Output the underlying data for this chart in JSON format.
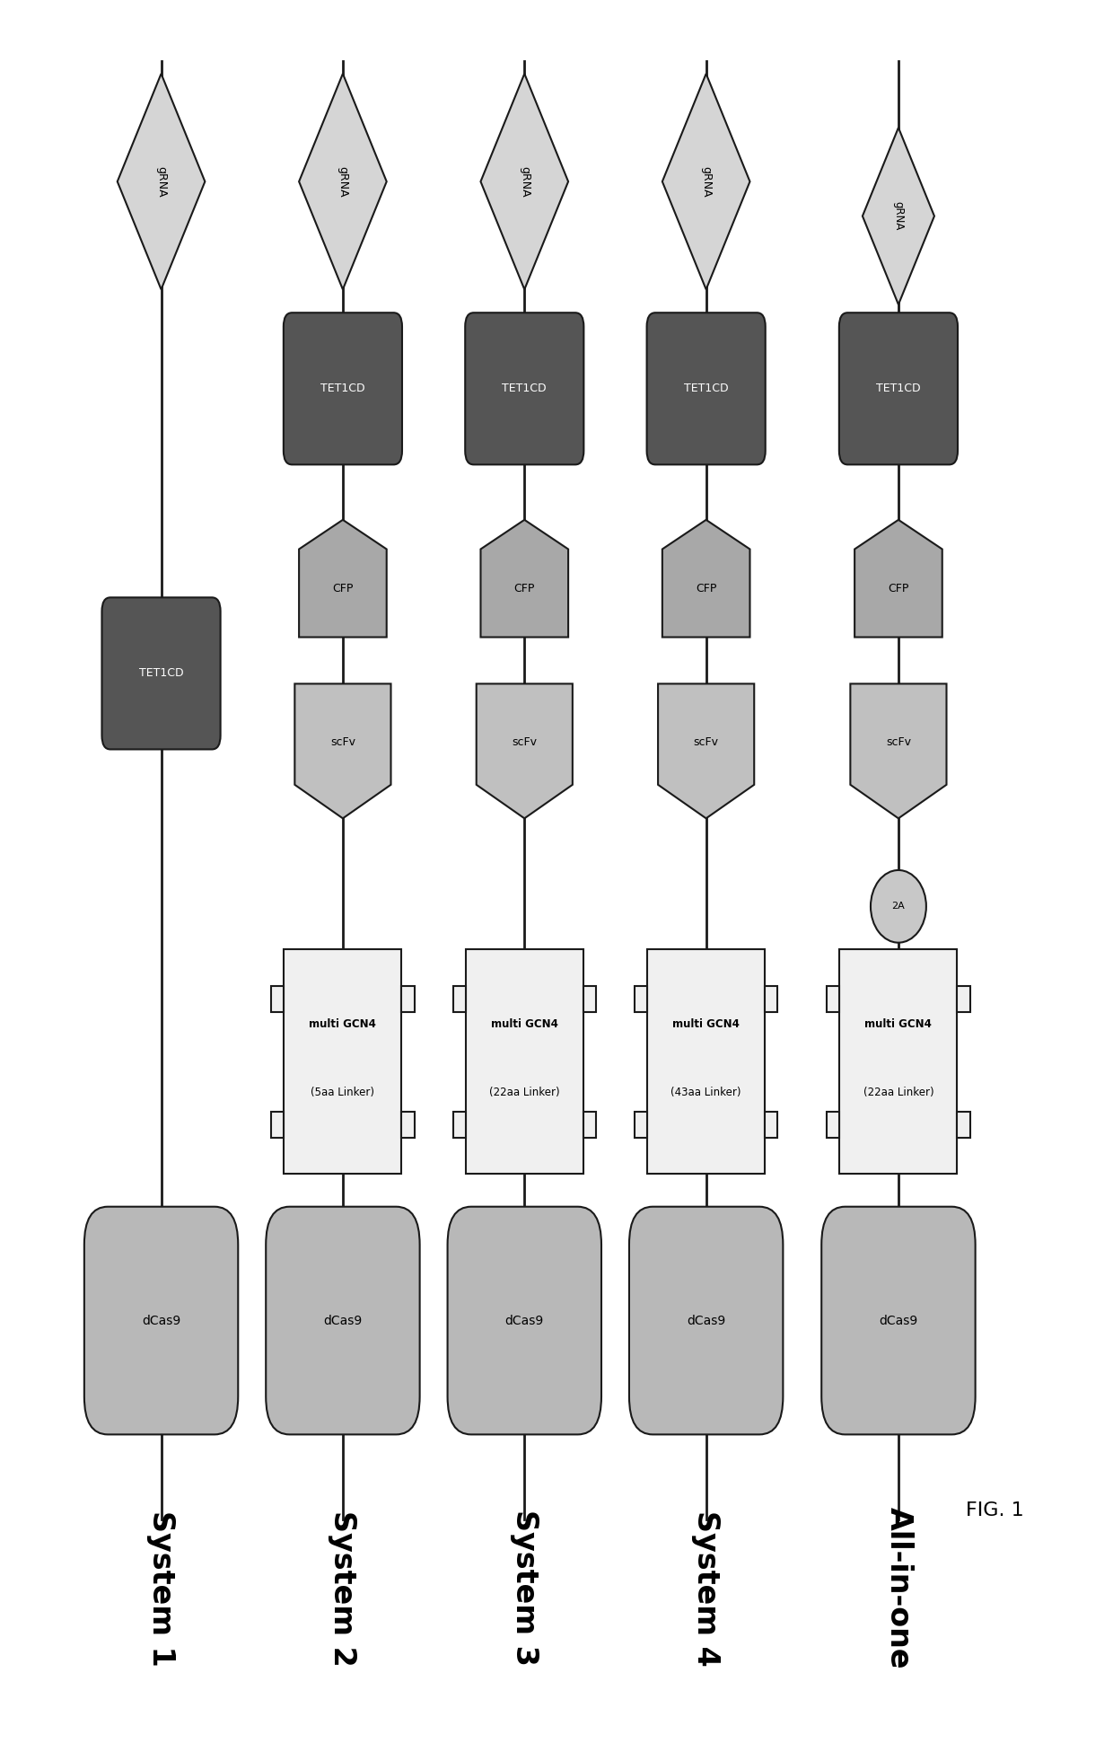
{
  "systems": [
    "System 1",
    "System 2",
    "System 3",
    "System 4",
    "All-in-one"
  ],
  "fig_width": 12.4,
  "fig_height": 19.61,
  "bg_color": "#ffffff",
  "line_color": "#1a1a1a",
  "dcas9_color": "#b8b8b8",
  "tet1cd_color": "#555555",
  "gcn4_color": "#f0f0f0",
  "cfp_color": "#a8a8a8",
  "scfv_color": "#c0c0c0",
  "grna_color": "#d5d5d5",
  "twoA_color": "#c8c8c8",
  "label_fontsize": 24,
  "linker_labels": [
    "multi GCN4\n(5aa Linker)",
    "multi GCN4\n(22aa Linker)",
    "multi GCN4\n(43aa Linker)",
    "multi GCN4\n(22aa Linker)"
  ],
  "fig1_label": "FIG. 1"
}
